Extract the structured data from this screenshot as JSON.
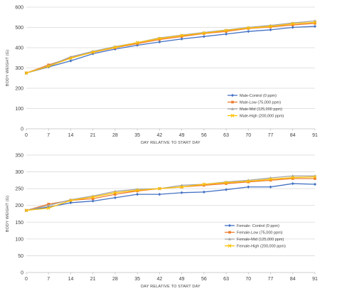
{
  "colors": {
    "control": "#4472C4",
    "low": "#ED7D31",
    "mid": "#A5A5A5",
    "high": "#FFC000",
    "grid": "#d9d9d9",
    "axis": "#bfbfbf"
  },
  "chart_data": [
    {
      "type": "line",
      "title": "",
      "xlabel": "DAY RELATIVE TO START DAY",
      "ylabel": "BODY WEIGHT (G)",
      "x": [
        0,
        7,
        14,
        21,
        28,
        35,
        42,
        49,
        56,
        63,
        70,
        77,
        84,
        91
      ],
      "xticks": [
        "0",
        "7",
        "14",
        "21",
        "28",
        "35",
        "42",
        "49",
        "56",
        "63",
        "70",
        "77",
        "84",
        "91"
      ],
      "ylim": [
        0,
        600
      ],
      "yticks": [
        "0",
        "100",
        "200",
        "300",
        "400",
        "500",
        "600"
      ],
      "grid": true,
      "legend_position": "right",
      "series": [
        {
          "name": "Male-Control (0 ppm)",
          "color_key": "control",
          "marker": "diamond",
          "values": [
            275,
            305,
            335,
            370,
            393,
            412,
            428,
            443,
            455,
            467,
            480,
            488,
            500,
            505
          ]
        },
        {
          "name": "Male-Low (75,000 ppm)",
          "color_key": "low",
          "marker": "square",
          "values": [
            275,
            315,
            350,
            377,
            400,
            420,
            440,
            455,
            470,
            480,
            495,
            502,
            512,
            520
          ]
        },
        {
          "name": "Male-Mid (125,000 ppm)",
          "color_key": "mid",
          "marker": "triangle",
          "values": [
            275,
            310,
            355,
            382,
            405,
            425,
            448,
            462,
            475,
            487,
            500,
            510,
            522,
            532
          ]
        },
        {
          "name": "Male-High (200,000 ppm)",
          "color_key": "high",
          "marker": "x",
          "values": [
            275,
            308,
            348,
            378,
            402,
            425,
            445,
            460,
            472,
            485,
            497,
            505,
            518,
            525
          ]
        }
      ]
    },
    {
      "type": "line",
      "title": "",
      "xlabel": "DAY RELATIVE TO START DAY",
      "ylabel": "BODY WEIGHT (G)",
      "x": [
        0,
        7,
        14,
        21,
        28,
        35,
        42,
        49,
        56,
        63,
        70,
        77,
        84,
        91
      ],
      "xticks": [
        "0",
        "7",
        "14",
        "21",
        "28",
        "35",
        "42",
        "49",
        "56",
        "63",
        "70",
        "77",
        "84",
        "91"
      ],
      "ylim": [
        0,
        350
      ],
      "yticks": [
        "0",
        "50",
        "100",
        "150",
        "200",
        "250",
        "300",
        "350"
      ],
      "grid": true,
      "legend_position": "right",
      "series": [
        {
          "name": "Female- Control (0 ppm)",
          "color_key": "control",
          "marker": "diamond",
          "values": [
            185,
            195,
            208,
            213,
            223,
            233,
            233,
            238,
            240,
            247,
            255,
            255,
            265,
            263
          ]
        },
        {
          "name": "Female-Low (75,000 ppm)",
          "color_key": "low",
          "marker": "square",
          "values": [
            185,
            204,
            215,
            220,
            233,
            243,
            250,
            255,
            260,
            265,
            270,
            275,
            280,
            280
          ]
        },
        {
          "name": "Female-Mid (125,000 ppm)",
          "color_key": "mid",
          "marker": "triangle",
          "values": [
            185,
            200,
            217,
            228,
            242,
            248,
            250,
            260,
            263,
            270,
            275,
            282,
            288,
            288
          ]
        },
        {
          "name": "Female-High (200,000 ppm)",
          "color_key": "high",
          "marker": "x",
          "values": [
            185,
            192,
            215,
            225,
            238,
            245,
            250,
            255,
            263,
            268,
            272,
            278,
            283,
            285
          ]
        }
      ]
    }
  ]
}
